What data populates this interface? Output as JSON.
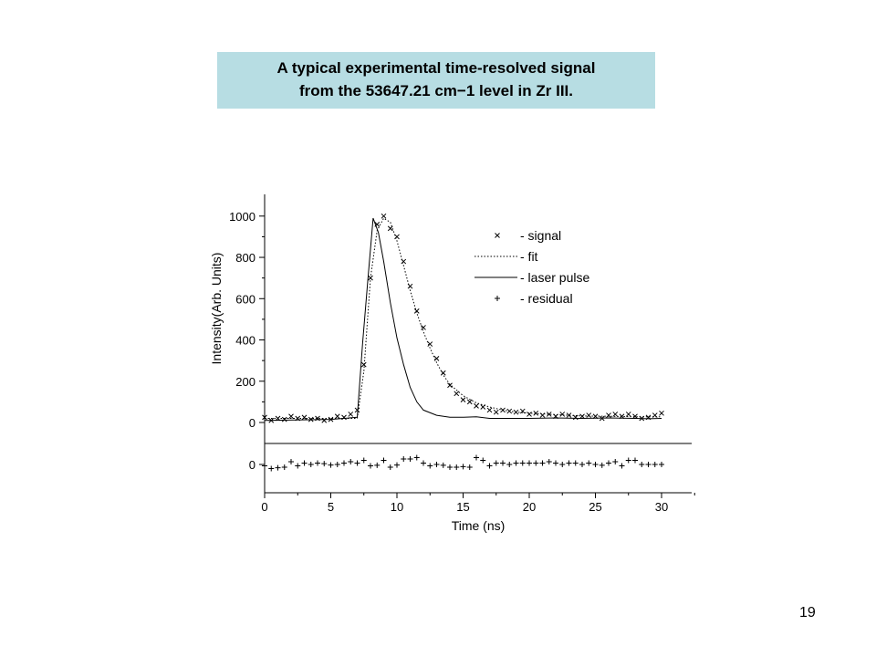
{
  "slide": {
    "title_line1": "A typical experimental time-resolved signal",
    "title_line2": "from the 53647.21 cm−1 level in Zr III.",
    "page_number": "19",
    "title_box_color": "#b7dde3"
  },
  "chart_data": {
    "type": "line",
    "xlabel": "Time (ns)",
    "ylabel": "Intensity(Arb. Units)",
    "xlim": [
      0,
      32.5
    ],
    "ylim": [
      -100,
      1050
    ],
    "x_ticks": [
      "0",
      "5",
      "10",
      "15",
      "20",
      "25",
      "30"
    ],
    "y_ticks": [
      "0",
      "200",
      "400",
      "600",
      "800",
      "1000"
    ],
    "residual_zero_label": "0",
    "legend": [
      {
        "marker": "×",
        "label": "- signal"
      },
      {
        "line": "dotted",
        "label": "- fit"
      },
      {
        "line": "solid",
        "label": "- laser pulse"
      },
      {
        "marker": "+",
        "label": "- residual"
      }
    ],
    "series": [
      {
        "name": "signal",
        "style": "x-markers",
        "x": [
          0,
          0.5,
          1,
          1.5,
          2,
          2.5,
          3,
          3.5,
          4,
          4.5,
          5,
          5.5,
          6,
          6.5,
          7,
          7.5,
          8,
          8.5,
          9,
          9.5,
          10,
          10.5,
          11,
          11.5,
          12,
          12.5,
          13,
          13.5,
          14,
          14.5,
          15,
          15.5,
          16,
          16.5,
          17,
          17.5,
          18,
          18.5,
          19,
          19.5,
          20,
          20.5,
          21,
          21.5,
          22,
          22.5,
          23,
          23.5,
          24,
          24.5,
          25,
          25.5,
          26,
          26.5,
          27,
          27.5,
          28,
          28.5,
          29,
          29.5,
          30
        ],
        "y": [
          25,
          10,
          20,
          15,
          30,
          20,
          25,
          15,
          20,
          10,
          15,
          30,
          25,
          40,
          60,
          280,
          700,
          960,
          1000,
          940,
          900,
          780,
          660,
          540,
          460,
          380,
          310,
          240,
          180,
          140,
          110,
          100,
          80,
          75,
          60,
          50,
          60,
          55,
          50,
          55,
          40,
          45,
          35,
          40,
          30,
          40,
          35,
          25,
          30,
          35,
          30,
          20,
          35,
          40,
          30,
          40,
          30,
          20,
          25,
          35,
          45
        ]
      },
      {
        "name": "fit",
        "style": "dotted",
        "x": [
          0,
          7,
          7.5,
          8,
          8.5,
          9,
          9.5,
          10,
          10.5,
          11,
          11.5,
          12,
          12.5,
          13,
          13.5,
          14,
          15,
          16,
          17,
          18,
          19,
          20,
          22,
          24,
          26,
          28,
          30
        ],
        "y": [
          20,
          20,
          250,
          700,
          930,
          990,
          970,
          880,
          760,
          640,
          530,
          440,
          360,
          290,
          230,
          185,
          130,
          95,
          75,
          60,
          50,
          45,
          38,
          32,
          30,
          28,
          28
        ]
      },
      {
        "name": "laser pulse",
        "style": "solid",
        "x": [
          0,
          5,
          6,
          7,
          7.4,
          7.8,
          8.2,
          8.6,
          9,
          9.5,
          10,
          10.5,
          11,
          11.5,
          12,
          13,
          14,
          15,
          16,
          17,
          18,
          20,
          22,
          24,
          26,
          28,
          29,
          30
        ],
        "y": [
          10,
          15,
          20,
          25,
          380,
          690,
          990,
          920,
          780,
          580,
          410,
          280,
          170,
          100,
          60,
          35,
          25,
          25,
          28,
          20,
          20,
          20,
          22,
          20,
          22,
          20,
          18,
          20
        ]
      },
      {
        "name": "residual",
        "style": "plus-markers",
        "x": [
          0,
          0.5,
          1,
          1.5,
          2,
          2.5,
          3,
          3.5,
          4,
          4.5,
          5,
          5.5,
          6,
          6.5,
          7,
          7.5,
          8,
          8.5,
          9,
          9.5,
          10,
          10.5,
          11,
          11.5,
          12,
          12.5,
          13,
          13.5,
          14,
          14.5,
          15,
          15.5,
          16,
          16.5,
          17,
          17.5,
          18,
          18.5,
          19,
          19.5,
          20,
          20.5,
          21,
          21.5,
          22,
          22.5,
          23,
          23.5,
          24,
          24.5,
          25,
          25.5,
          26,
          26.5,
          27,
          27.5,
          28,
          28.5,
          29,
          29.5,
          30
        ],
        "y": [
          -5,
          -15,
          -12,
          -10,
          10,
          -5,
          5,
          0,
          5,
          3,
          -2,
          0,
          5,
          10,
          5,
          15,
          -5,
          -3,
          15,
          -10,
          -2,
          20,
          20,
          25,
          5,
          -5,
          0,
          -3,
          -10,
          -10,
          -8,
          -10,
          25,
          15,
          -5,
          5,
          5,
          0,
          5,
          5,
          5,
          5,
          5,
          10,
          5,
          0,
          5,
          5,
          0,
          5,
          0,
          -3,
          5,
          10,
          -5,
          15,
          15,
          0,
          0,
          0,
          0
        ]
      }
    ]
  }
}
